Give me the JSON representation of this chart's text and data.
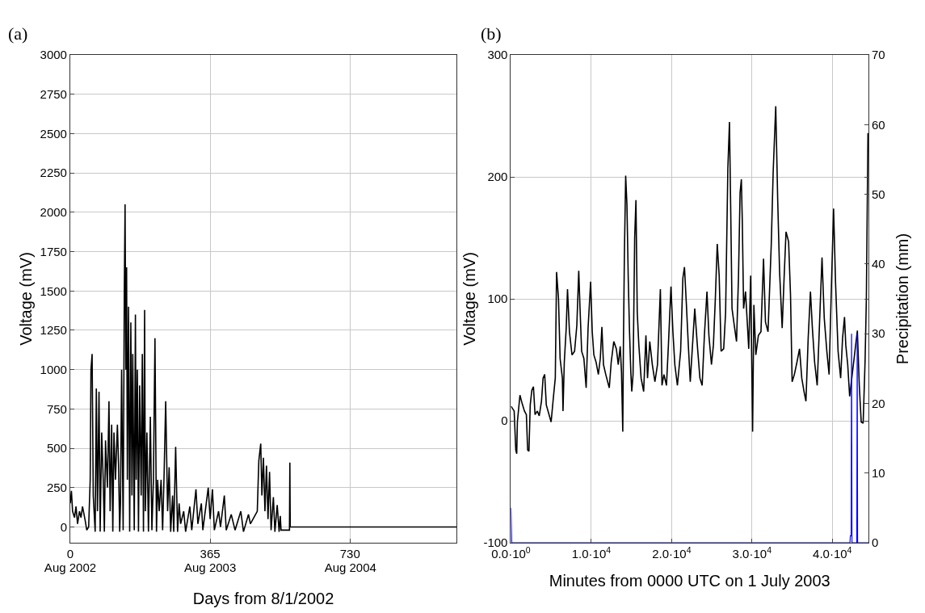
{
  "chart_data": [
    {
      "type": "line",
      "annotations": [
        "(a)"
      ],
      "ylabel": "Voltage (mV)",
      "xlabel": "Days from 8/1/2002",
      "xlim": [
        0,
        1008
      ],
      "xticks": [
        0,
        365,
        730
      ],
      "x2lim": [
        "2002-08-01",
        "2005-05-05"
      ],
      "x2ticks": [
        {
          "value": "2002-08-01",
          "label": "Aug 2002"
        },
        {
          "value": "2003-08-01",
          "label": "Aug 2003"
        },
        {
          "value": "2004-08-01",
          "label": "Aug 2004"
        }
      ],
      "ylim": [
        -100,
        3000
      ],
      "yticks": [
        0,
        250,
        500,
        750,
        1000,
        1250,
        1500,
        1750,
        2000,
        2250,
        2500,
        2750,
        3000
      ],
      "grid": true,
      "series": [
        {
          "color": "#000000",
          "x": [
            0,
            3,
            6,
            11,
            15,
            19,
            24,
            28,
            32,
            39,
            43,
            48,
            52,
            54,
            57,
            60,
            65,
            68,
            71,
            75,
            78,
            82,
            86,
            89,
            92,
            97,
            101,
            104,
            108,
            111,
            114,
            118,
            123,
            126,
            129,
            131,
            134,
            138,
            141,
            143,
            145,
            147,
            149,
            152,
            155,
            158,
            161,
            163,
            167,
            170,
            172,
            175,
            178,
            181,
            185,
            188,
            191,
            194,
            196,
            200,
            204,
            209,
            213,
            217,
            221,
            225,
            228,
            232,
            237,
            241,
            245,
            249,
            254,
            258,
            262,
            267,
            270,
            275,
            280,
            284,
            288,
            296,
            301,
            312,
            317,
            328,
            333,
            342,
            346,
            360,
            365,
            371,
            376,
            387,
            392,
            402,
            407,
            420,
            430,
            445,
            452,
            465,
            470,
            488,
            492,
            497,
            500,
            504,
            508,
            512,
            516,
            520,
            524,
            530,
            534,
            540,
            545,
            548,
            550,
            572,
            573,
            574,
            1008
          ],
          "values": [
            150,
            230,
            100,
            60,
            130,
            20,
            100,
            60,
            130,
            40,
            -20,
            0,
            300,
            1000,
            1100,
            200,
            -30,
            880,
            100,
            860,
            -30,
            600,
            300,
            -30,
            550,
            250,
            800,
            100,
            650,
            -30,
            600,
            300,
            650,
            400,
            -30,
            150,
            1000,
            -20,
            1500,
            2050,
            1000,
            1650,
            300,
            1400,
            -30,
            1300,
            200,
            1100,
            -20,
            1350,
            300,
            1000,
            -30,
            900,
            200,
            1100,
            -30,
            1380,
            100,
            600,
            -30,
            700,
            -20,
            300,
            1200,
            -30,
            300,
            100,
            300,
            -20,
            350,
            800,
            100,
            380,
            -30,
            200,
            -30,
            510,
            -30,
            150,
            20,
            100,
            -30,
            130,
            -20,
            240,
            20,
            150,
            -20,
            250,
            50,
            240,
            -20,
            100,
            0,
            200,
            -20,
            80,
            -20,
            100,
            -30,
            80,
            20,
            100,
            420,
            530,
            200,
            440,
            100,
            390,
            50,
            350,
            -20,
            190,
            -30,
            140,
            -30,
            70,
            -20,
            -20,
            410,
            0,
            0
          ]
        }
      ]
    },
    {
      "type": "line",
      "annotations": [
        "(b)"
      ],
      "ylabel": "Voltage (mV)",
      "y2label": "Precipitation (mm)",
      "xlabel": "Minutes from 0000 UTC on 1 July 2003",
      "xlim": [
        0,
        44500
      ],
      "xticks": [
        {
          "value": 0,
          "label": "0.0·10$^{0}$"
        },
        {
          "value": 10000,
          "label": "1.0·10$^{4}$"
        },
        {
          "value": 20000,
          "label": "2.0·10$^{4}$"
        },
        {
          "value": 30000,
          "label": "3.0·10$^{4}$"
        },
        {
          "value": 40000,
          "label": "4.0·10$^{4}$"
        }
      ],
      "ylim": [
        -100,
        300
      ],
      "yticks": [
        -100,
        0,
        100,
        200,
        300
      ],
      "y2lim": [
        0,
        70
      ],
      "y2ticks": [
        0,
        10,
        20,
        30,
        40,
        50,
        60,
        70
      ],
      "grid": true,
      "series": [
        {
          "color": "#000000",
          "x": [
            0,
            400,
            600,
            720,
            800,
            1120,
            1400,
            1680,
            1920,
            2080,
            2240,
            2400,
            2600,
            2800,
            3000,
            3280,
            3520,
            3800,
            4000,
            4200,
            4400,
            5000,
            5280,
            5520,
            5680,
            5920,
            6120,
            6400,
            6480,
            6640,
            6880,
            7040,
            7280,
            7600,
            7920,
            8200,
            8440,
            8600,
            8800,
            9080,
            9360,
            9600,
            9920,
            10120,
            10320,
            10600,
            10880,
            11120,
            11320,
            11520,
            11800,
            12240,
            12480,
            12800,
            13120,
            13360,
            13600,
            13760,
            13920,
            14000,
            14120,
            14280,
            14440,
            14600,
            14760,
            14920,
            15040,
            15200,
            15400,
            15560,
            15720,
            15920,
            16200,
            16520,
            16800,
            17000,
            17280,
            17600,
            17920,
            18240,
            18600,
            18800,
            19040,
            19360,
            19600,
            19920,
            20160,
            20400,
            20720,
            21120,
            21400,
            21600,
            21840,
            22080,
            22320,
            22600,
            22880,
            23200,
            23520,
            23800,
            24080,
            24400,
            24640,
            24960,
            25200,
            25440,
            25680,
            25920,
            26160,
            26480,
            26720,
            27000,
            27200,
            27360,
            27520,
            27800,
            28080,
            28320,
            28520,
            28680,
            28800,
            28960,
            29200,
            29440,
            29600,
            29840,
            30080,
            30240,
            30480,
            30800,
            31120,
            31440,
            31680,
            32000,
            32400,
            32640,
            32960,
            33200,
            33440,
            33760,
            34000,
            34240,
            34560,
            34800,
            35000,
            35280,
            35600,
            35920,
            36200,
            36480,
            36720,
            37000,
            37280,
            37520,
            37800,
            38120,
            38400,
            38720,
            39000,
            39320,
            39600,
            39920,
            40160,
            40400,
            40720,
            41040,
            41280,
            41520,
            41680,
            41920,
            42160,
            43120,
            43360,
            43600,
            43840,
            44080,
            44240,
            44440
          ],
          "values": [
            12,
            8,
            -24,
            -27,
            -1,
            21,
            14,
            8,
            5,
            -24,
            -25,
            13,
            25,
            28,
            5,
            8,
            4,
            16,
            35,
            38,
            13,
            -1,
            19,
            35,
            122,
            100,
            51,
            35,
            8,
            48,
            76,
            108,
            73,
            54,
            57,
            78,
            123,
            92,
            57,
            51,
            27,
            76,
            114,
            73,
            54,
            48,
            38,
            51,
            77,
            46,
            38,
            27,
            48,
            65,
            59,
            46,
            61,
            40,
            -9,
            62,
            136,
            201,
            177,
            117,
            73,
            40,
            24,
            38,
            150,
            181,
            89,
            62,
            35,
            24,
            70,
            35,
            65,
            46,
            32,
            46,
            108,
            29,
            38,
            29,
            62,
            110,
            73,
            46,
            29,
            57,
            117,
            126,
            95,
            62,
            32,
            62,
            92,
            62,
            35,
            29,
            70,
            106,
            70,
            46,
            62,
            100,
            145,
            119,
            57,
            59,
            89,
            207,
            245,
            171,
            92,
            78,
            65,
            117,
            187,
            198,
            163,
            92,
            106,
            78,
            59,
            119,
            -9,
            95,
            54,
            70,
            73,
            133,
            81,
            73,
            144,
            204,
            258,
            182,
            122,
            76,
            117,
            155,
            147,
            103,
            32,
            38,
            48,
            59,
            35,
            24,
            16,
            68,
            106,
            76,
            48,
            29,
            78,
            134,
            84,
            57,
            38,
            117,
            174,
            114,
            57,
            35,
            68,
            85,
            62,
            46,
            20,
            74,
            29,
            -1,
            -2,
            49,
            100,
            236
          ]
        },
        {
          "color": "#0000ff",
          "axis": "y2",
          "x": [
            0,
            100,
            42200,
            42250,
            42350,
            42400,
            42450,
            43050,
            43100,
            43150,
            44500
          ],
          "values": [
            5,
            0,
            0,
            1,
            1,
            30,
            0,
            0,
            30,
            0,
            0
          ]
        }
      ]
    }
  ]
}
